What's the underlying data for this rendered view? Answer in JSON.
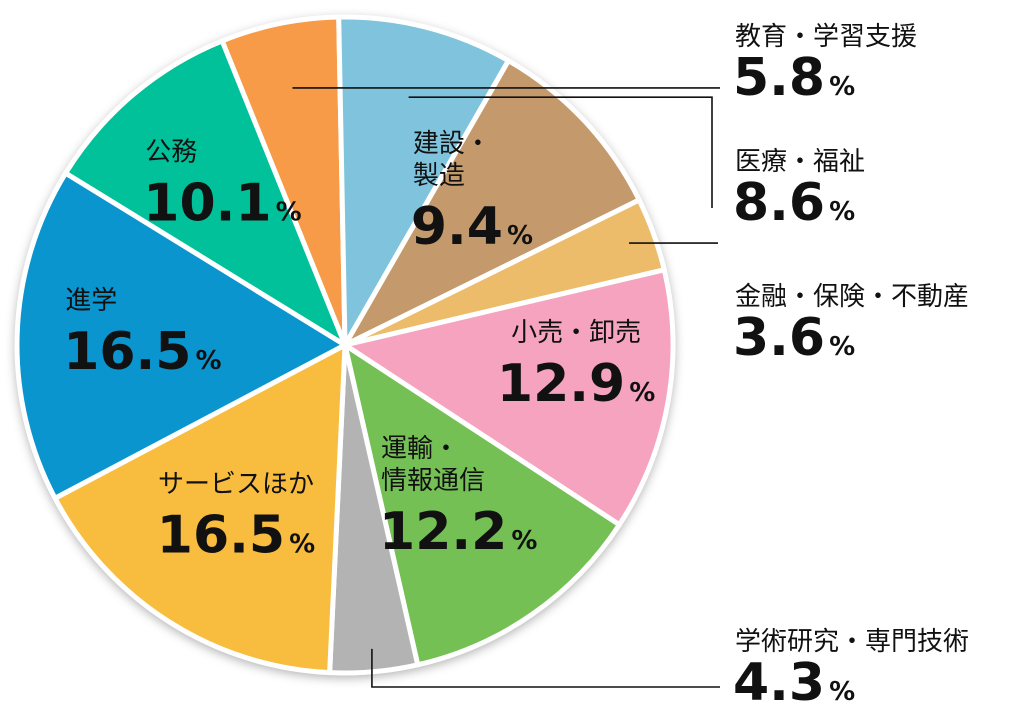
{
  "chart_data": {
    "type": "pie",
    "unit": "%",
    "slices": [
      {
        "label": "教育・学習支援",
        "value": 5.8,
        "color": "#f89b48"
      },
      {
        "label": "医療・福祉",
        "value": 8.6,
        "color": "#7fc4dc"
      },
      {
        "label": "建設・製造",
        "value": 9.4,
        "color": "#c49a6c"
      },
      {
        "label": "金融・保険・不動産",
        "value": 3.6,
        "color": "#ecbc6b"
      },
      {
        "label": "小売・卸売",
        "value": 12.9,
        "color": "#f5a3be"
      },
      {
        "label": "運輸・情報通信",
        "value": 12.2,
        "color": "#74c055"
      },
      {
        "label": "学術研究・専門技術",
        "value": 4.3,
        "color": "#b3b3b3"
      },
      {
        "label": "サービスほか",
        "value": 16.5,
        "color": "#f8bd3f"
      },
      {
        "label": "進学",
        "value": 16.5,
        "color": "#0a95cf"
      },
      {
        "label": "公務",
        "value": 10.1,
        "color": "#00c199"
      }
    ],
    "display": [
      {
        "name_lines": [],
        "value": "5.8"
      },
      {
        "name_lines": [],
        "value": "8.6"
      },
      {
        "name_lines": [
          "建設・",
          "製造"
        ],
        "value": "9.4"
      },
      {
        "name_lines": [],
        "value": "3.6"
      },
      {
        "name_lines": [
          "小売・卸売"
        ],
        "value": "12.9"
      },
      {
        "name_lines": [
          "運輸・",
          "情報通信"
        ],
        "value": "12.2"
      },
      {
        "name_lines": [],
        "value": "4.3"
      },
      {
        "name_lines": [
          "サービスほか"
        ],
        "value": "16.5"
      },
      {
        "name_lines": [
          "進学"
        ],
        "value": "16.5"
      },
      {
        "name_lines": [
          "公務"
        ],
        "value": "10.1"
      }
    ],
    "legend": "callouts-right"
  }
}
